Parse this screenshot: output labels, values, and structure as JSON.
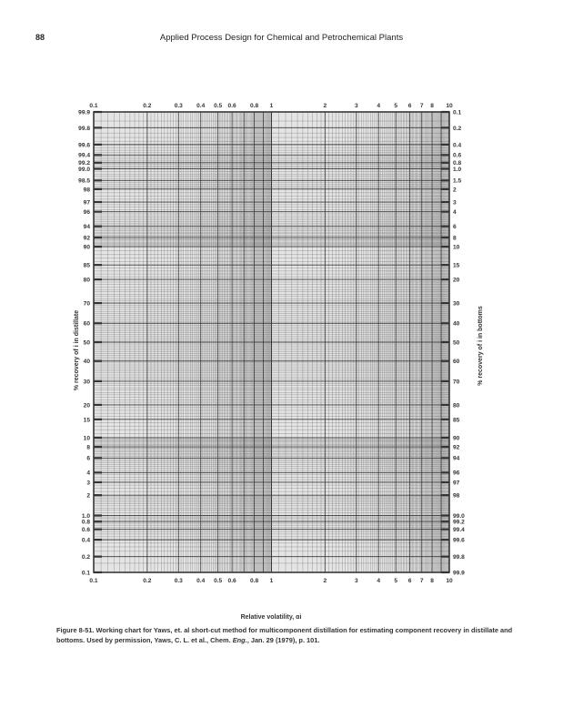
{
  "page": {
    "page_number": "88",
    "running_title": "Applied Process Design for Chemical and Petrochemical Plants",
    "caption_prefix": "Figure 8-51.",
    "caption_text": " Working chart for Yaws, et. al short-cut method for multicomponent distillation for estimating component recovery in distillate and bottoms. Used by permission, Yaws, C. L. et al., Chem. ",
    "caption_journal": "Eng.",
    "caption_end": ", Jan. 29 (1979), p. 101."
  },
  "chart_data": {
    "type": "line",
    "title": "",
    "series": [],
    "grid": true,
    "grid_color": "#333333",
    "xlabel": "Relative volatility, αi",
    "xscale": "log",
    "xlim": [
      0.1,
      10
    ],
    "x_ticks": [
      "0.1",
      "0.2",
      "0.3",
      "0.4",
      "0.5",
      "0.6",
      "0.8",
      "1",
      "2",
      "3",
      "4",
      "5",
      "6",
      "7",
      "8",
      "10"
    ],
    "ylabel_left": "% recovery of i in distillate",
    "ylabel_right": "% recovery of i in bottoms",
    "yscale": "probability",
    "ylim_left": [
      0.1,
      99.9
    ],
    "ylim_right": [
      99.9,
      0.1
    ],
    "y_ticks_left": [
      "99.9",
      "99.8",
      "99.6",
      "99.4",
      "99.2",
      "99.0",
      "98.5",
      "98",
      "97",
      "96",
      "94",
      "92",
      "90",
      "85",
      "80",
      "70",
      "60",
      "50",
      "40",
      "30",
      "20",
      "15",
      "10",
      "8",
      "6",
      "4",
      "3",
      "2",
      "1.0",
      "0.8",
      "0.6",
      "0.4",
      "0.2",
      "0.1"
    ],
    "y_ticks_right": [
      "0.1",
      "0.2",
      "0.4",
      "0.6",
      "0.8",
      "1.0",
      "1.5",
      "2",
      "3",
      "4",
      "6",
      "8",
      "10",
      "15",
      "20",
      "30",
      "40",
      "50",
      "60",
      "70",
      "80",
      "85",
      "90",
      "92",
      "94",
      "96",
      "97",
      "98",
      "99.0",
      "99.2",
      "99.4",
      "99.6",
      "99.8",
      "99.9"
    ]
  }
}
